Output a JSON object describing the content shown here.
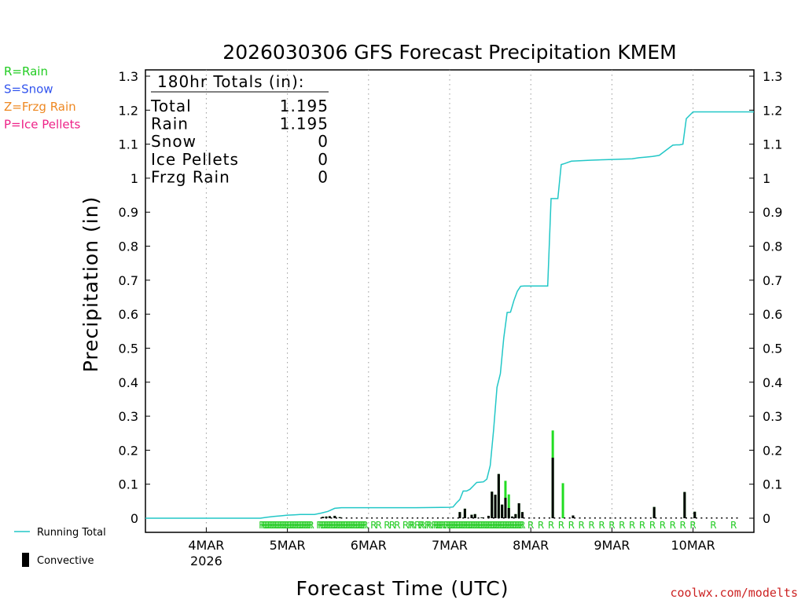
{
  "chart_data": {
    "type": "bar+line",
    "title": "2026030306 GFS Forecast Precipitation KMEM",
    "xlabel": "Forecast Time (UTC)",
    "ylabel": "Precipitation (in)",
    "ylim": [
      0,
      1.3
    ],
    "yticks": [
      "0",
      "0.1",
      "0.2",
      "0.3",
      "0.4",
      "0.5",
      "0.6",
      "0.7",
      "0.8",
      "0.9",
      "1",
      "1.1",
      "1.2",
      "1.3"
    ],
    "xlim_hours": [
      0,
      180
    ],
    "xticks": [
      {
        "hour": 18,
        "label": "4MAR",
        "sub": "2026"
      },
      {
        "hour": 42,
        "label": "5MAR",
        "sub": ""
      },
      {
        "hour": 66,
        "label": "6MAR",
        "sub": ""
      },
      {
        "hour": 90,
        "label": "7MAR",
        "sub": ""
      },
      {
        "hour": 114,
        "label": "8MAR",
        "sub": ""
      },
      {
        "hour": 138,
        "label": "9MAR",
        "sub": ""
      },
      {
        "hour": 162,
        "label": "10MAR",
        "sub": ""
      }
    ],
    "grid": "vertical dotted",
    "precip_type_legend": [
      {
        "text": "R=Rain",
        "color": "#22cc22"
      },
      {
        "text": "S=Snow",
        "color": "#3355ee"
      },
      {
        "text": "Z=Frzg Rain",
        "color": "#ee8822"
      },
      {
        "text": "P=Ice Pellets",
        "color": "#ee2288"
      }
    ],
    "series_legend": {
      "line": "Running Total",
      "bar": "Convective"
    },
    "totals": {
      "header": "180hr Totals (in):",
      "rows": [
        {
          "label": "Total",
          "value": "1.195"
        },
        {
          "label": "Rain",
          "value": "1.195"
        },
        {
          "label": "Snow",
          "value": "0"
        },
        {
          "label": "Ice Pellets",
          "value": "0"
        },
        {
          "label": "Frzg Rain",
          "value": "0"
        }
      ]
    },
    "running_total": {
      "hours": [
        0,
        34,
        36,
        38,
        40,
        42,
        44,
        46,
        50,
        52,
        54,
        56,
        58,
        66,
        80,
        90,
        91,
        92,
        93,
        94,
        95,
        96,
        97,
        98,
        99,
        100,
        101,
        102,
        103,
        104,
        105,
        106,
        107,
        108,
        109,
        110,
        111,
        112,
        114,
        116,
        117,
        118,
        119,
        120,
        121,
        122,
        123,
        124,
        126,
        132,
        138,
        144,
        146,
        148,
        150,
        152,
        156,
        157,
        158,
        159,
        160,
        162,
        170,
        180
      ],
      "values": [
        0,
        0,
        0.003,
        0.005,
        0.007,
        0.009,
        0.01,
        0.011,
        0.011,
        0.015,
        0.02,
        0.029,
        0.031,
        0.031,
        0.031,
        0.032,
        0.033,
        0.045,
        0.055,
        0.08,
        0.08,
        0.085,
        0.095,
        0.105,
        0.106,
        0.107,
        0.115,
        0.155,
        0.26,
        0.385,
        0.425,
        0.53,
        0.605,
        0.606,
        0.64,
        0.667,
        0.682,
        0.683,
        0.683,
        0.683,
        0.683,
        0.683,
        0.683,
        0.94,
        0.94,
        0.94,
        1.04,
        1.043,
        1.05,
        1.053,
        1.055,
        1.057,
        1.06,
        1.062,
        1.064,
        1.067,
        1.097,
        1.098,
        1.098,
        1.1,
        1.175,
        1.195,
        1.195,
        1.195
      ]
    },
    "bars": [
      {
        "hour": 52.5,
        "total": 0.004,
        "conv": 0.004
      },
      {
        "hour": 53.5,
        "total": 0.005,
        "conv": 0.005
      },
      {
        "hour": 54.5,
        "total": 0.006,
        "conv": 0.006
      },
      {
        "hour": 56,
        "total": 0.007,
        "conv": 0.007
      },
      {
        "hour": 57.5,
        "total": 0.003,
        "conv": 0.003
      },
      {
        "hour": 93,
        "total": 0.018,
        "conv": 0.018
      },
      {
        "hour": 94.5,
        "total": 0.028,
        "conv": 0.028
      },
      {
        "hour": 96.5,
        "total": 0.01,
        "conv": 0.01
      },
      {
        "hour": 97.5,
        "total": 0.012,
        "conv": 0.012
      },
      {
        "hour": 99.5,
        "total": 0.002,
        "conv": 0.002
      },
      {
        "hour": 101.5,
        "total": 0.007,
        "conv": 0.007
      },
      {
        "hour": 102.5,
        "total": 0.078,
        "conv": 0.078
      },
      {
        "hour": 103.5,
        "total": 0.069,
        "conv": 0.069
      },
      {
        "hour": 104.5,
        "total": 0.13,
        "conv": 0.13
      },
      {
        "hour": 105.5,
        "total": 0.04,
        "conv": 0.04
      },
      {
        "hour": 106.5,
        "total": 0.11,
        "conv": 0.06
      },
      {
        "hour": 107.5,
        "total": 0.07,
        "conv": 0.03
      },
      {
        "hour": 108.5,
        "total": 0.005,
        "conv": 0.005
      },
      {
        "hour": 109.5,
        "total": 0.012,
        "conv": 0.012
      },
      {
        "hour": 110.5,
        "total": 0.044,
        "conv": 0.044
      },
      {
        "hour": 111.5,
        "total": 0.018,
        "conv": 0.018
      },
      {
        "hour": 120.5,
        "total": 0.258,
        "conv": 0.178
      },
      {
        "hour": 123.5,
        "total": 0.103,
        "conv": 0.0
      },
      {
        "hour": 126.5,
        "total": 0.008,
        "conv": 0.008
      },
      {
        "hour": 150.5,
        "total": 0.033,
        "conv": 0.033
      },
      {
        "hour": 159.5,
        "total": 0.077,
        "conv": 0.077
      },
      {
        "hour": 162.5,
        "total": 0.019,
        "conv": 0.019
      }
    ],
    "rain_markers": {
      "symbol": "R",
      "hours": [
        34.5,
        35,
        35.5,
        36,
        36.5,
        37,
        37.5,
        38,
        38.5,
        39,
        39.5,
        40,
        40.5,
        41,
        41.5,
        42,
        42.5,
        43,
        43.5,
        44,
        44.5,
        45,
        45.5,
        46,
        46.5,
        47,
        47.5,
        48,
        48.5,
        49,
        51.5,
        52,
        52.5,
        53,
        53.5,
        54,
        54.5,
        55,
        55.5,
        56,
        56.5,
        57,
        57.5,
        58,
        58.5,
        59,
        59.5,
        60,
        60.5,
        61,
        61.5,
        62,
        62.5,
        63,
        63.5,
        64,
        64.5,
        65,
        67.5,
        69,
        71.5,
        73,
        74.5,
        77,
        78.5,
        79,
        80.5,
        81.5,
        82,
        83.5,
        84,
        85.5,
        86,
        86.5,
        87,
        87.5,
        88,
        89,
        89.5,
        90,
        90.5,
        91,
        91.5,
        92,
        92.5,
        93,
        93.5,
        94,
        94.5,
        95,
        95.5,
        96,
        96.5,
        97,
        97.5,
        98,
        98.5,
        99,
        99.5,
        100,
        100.5,
        101,
        101.5,
        102,
        102.5,
        103,
        103.5,
        104,
        104.5,
        105,
        105.5,
        106,
        106.5,
        107,
        107.5,
        108,
        108.5,
        109,
        109.5,
        110,
        110.5,
        111,
        111.5,
        114,
        117,
        120,
        123,
        126,
        129,
        132,
        135,
        138,
        141,
        144,
        147,
        150,
        153,
        156,
        159,
        162,
        168,
        174
      ]
    }
  },
  "credit": "coolwx.com/modelts"
}
